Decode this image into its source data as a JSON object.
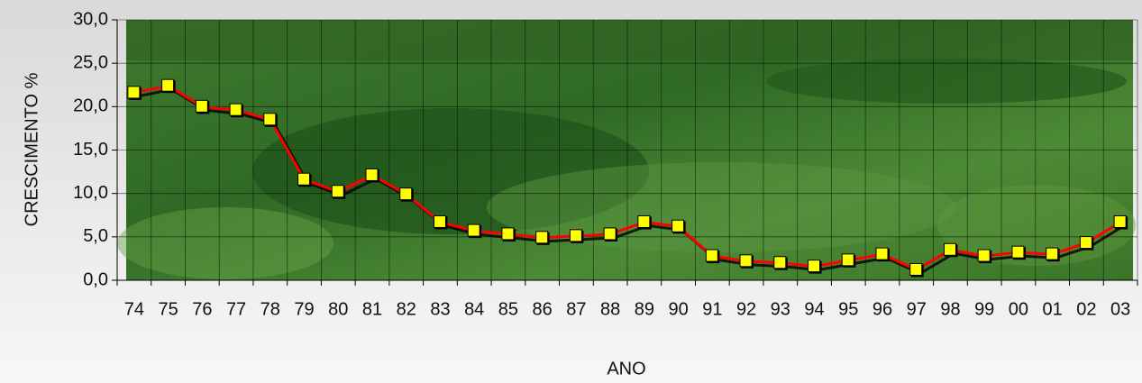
{
  "chart_data": {
    "type": "line",
    "y_label": "CRESCIMENTO %",
    "x_label": "ANO",
    "categories": [
      "74",
      "75",
      "76",
      "77",
      "78",
      "79",
      "80",
      "81",
      "82",
      "83",
      "84",
      "85",
      "86",
      "87",
      "88",
      "89",
      "90",
      "91",
      "92",
      "93",
      "94",
      "95",
      "96",
      "97",
      "98",
      "99",
      "00",
      "01",
      "02",
      "03"
    ],
    "values": [
      21.6,
      22.4,
      20.0,
      19.6,
      18.5,
      11.6,
      10.2,
      12.1,
      9.9,
      6.7,
      5.7,
      5.3,
      4.9,
      5.1,
      5.3,
      6.7,
      6.2,
      2.8,
      2.2,
      2.0,
      1.6,
      2.3,
      3.0,
      1.2,
      3.5,
      2.8,
      3.2,
      3.0,
      4.3,
      6.7
    ],
    "color": "#ff0000",
    "marker_color": "#ffff00",
    "ylim": [
      0,
      30
    ],
    "yticks": [
      {
        "value": 0,
        "label": "0,0"
      },
      {
        "value": 5,
        "label": "5,0"
      },
      {
        "value": 10,
        "label": "10,0"
      },
      {
        "value": 15,
        "label": "15,0"
      },
      {
        "value": 20,
        "label": "20,0"
      },
      {
        "value": 25,
        "label": "25,0"
      },
      {
        "value": 30,
        "label": "30,0"
      }
    ],
    "grid": true
  }
}
